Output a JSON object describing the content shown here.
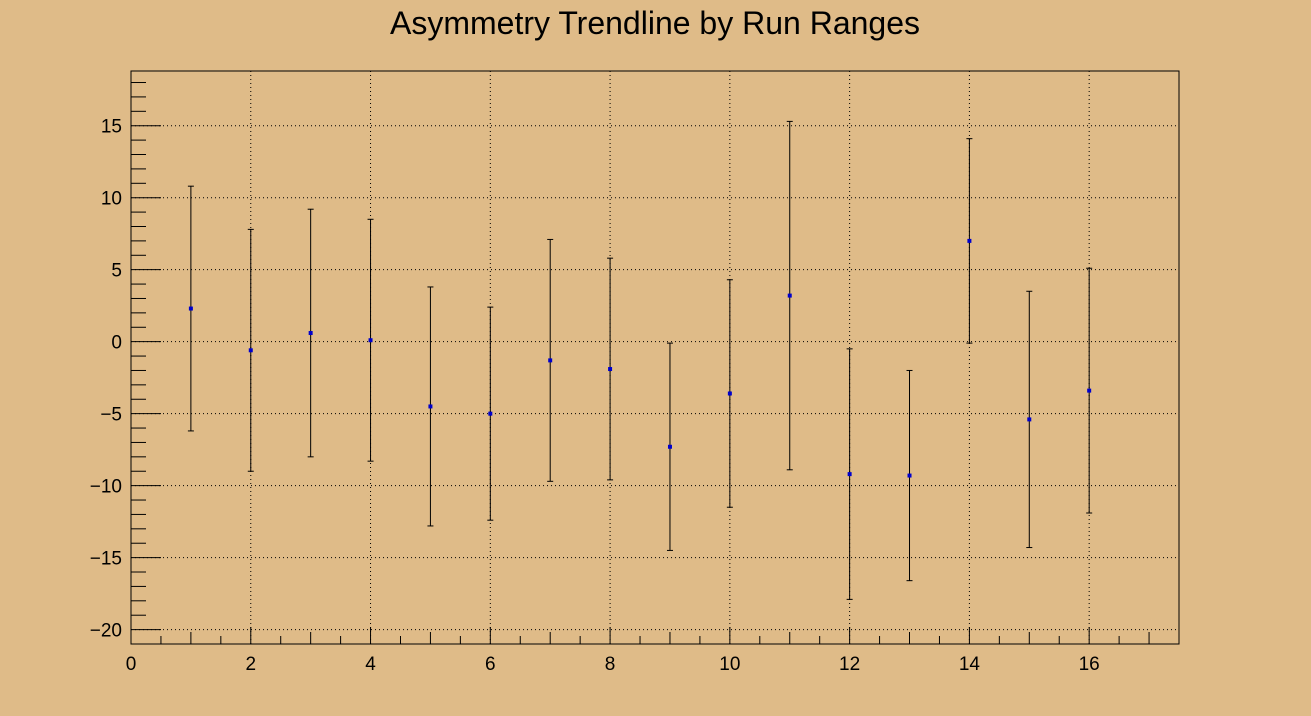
{
  "chart_data": {
    "type": "scatter",
    "title": "Asymmetry Trendline by Run Ranges",
    "xlabel": "",
    "ylabel": "",
    "xlim": [
      0,
      17.5
    ],
    "ylim": [
      -21,
      18.8
    ],
    "grid": true,
    "x_ticks": [
      0,
      2,
      4,
      6,
      8,
      10,
      12,
      14,
      16
    ],
    "y_ticks": [
      -20,
      -15,
      -10,
      -5,
      0,
      5,
      10,
      15
    ],
    "points": [
      {
        "x": 1,
        "y": 2.3,
        "err": 8.5
      },
      {
        "x": 2,
        "y": -0.6,
        "err": 8.4
      },
      {
        "x": 3,
        "y": 0.6,
        "err": 8.6
      },
      {
        "x": 4,
        "y": 0.1,
        "err": 8.4
      },
      {
        "x": 5,
        "y": -4.5,
        "err": 8.3
      },
      {
        "x": 6,
        "y": -5.0,
        "err": 7.4
      },
      {
        "x": 7,
        "y": -1.3,
        "err": 8.4
      },
      {
        "x": 8,
        "y": -1.9,
        "err": 7.7
      },
      {
        "x": 9,
        "y": -7.3,
        "err": 7.2
      },
      {
        "x": 10,
        "y": -3.6,
        "err": 7.9
      },
      {
        "x": 11,
        "y": 3.2,
        "err": 12.1
      },
      {
        "x": 12,
        "y": -9.2,
        "err": 8.7
      },
      {
        "x": 13,
        "y": -9.3,
        "err": 7.3
      },
      {
        "x": 14,
        "y": 7.0,
        "err": 7.1
      },
      {
        "x": 15,
        "y": -5.4,
        "err": 8.9
      },
      {
        "x": 16,
        "y": -3.4,
        "err": 8.5
      }
    ],
    "colors": {
      "background": "#dfbb88",
      "marker": "#0000cc",
      "axis": "#000000",
      "grid": "#000000"
    }
  }
}
